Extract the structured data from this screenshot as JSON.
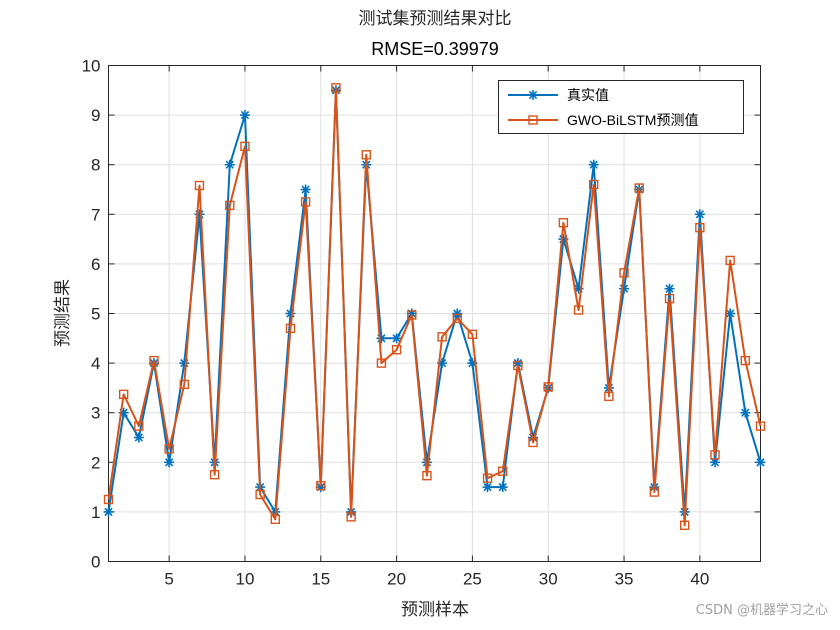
{
  "chart_data": {
    "type": "line",
    "title": "测试集预测结果对比",
    "subtitle": "RMSE=0.39979",
    "xlabel": "预测样本",
    "ylabel": "预测结果",
    "xlim": [
      1,
      44
    ],
    "ylim": [
      0,
      10
    ],
    "xticks": [
      5,
      10,
      15,
      20,
      25,
      30,
      35,
      40
    ],
    "yticks": [
      0,
      1,
      2,
      3,
      4,
      5,
      6,
      7,
      8,
      9,
      10
    ],
    "grid": true,
    "legend_position": "top-right",
    "x": [
      1,
      2,
      3,
      4,
      5,
      6,
      7,
      8,
      9,
      10,
      11,
      12,
      13,
      14,
      15,
      16,
      17,
      18,
      19,
      20,
      21,
      22,
      23,
      24,
      25,
      26,
      27,
      28,
      29,
      30,
      31,
      32,
      33,
      34,
      35,
      36,
      37,
      38,
      39,
      40,
      41,
      42,
      43,
      44
    ],
    "series": [
      {
        "name": "真实值",
        "color": "#0072BD",
        "marker": "asterisk",
        "values": [
          1,
          3,
          2.5,
          4,
          2,
          4,
          7,
          2,
          8,
          9,
          1.5,
          1,
          5,
          7.5,
          1.5,
          9.5,
          1,
          8,
          4.5,
          4.5,
          5,
          2,
          4,
          5,
          4,
          1.5,
          1.5,
          4,
          2.5,
          3.5,
          6.5,
          5.5,
          8,
          3.5,
          5.5,
          7.5,
          1.5,
          5.5,
          1,
          7,
          2,
          5,
          3,
          2
        ]
      },
      {
        "name": "GWO-BiLSTM预测值",
        "color": "#D95319",
        "marker": "square",
        "values": [
          1.25,
          3.37,
          2.73,
          4.05,
          2.27,
          3.57,
          7.58,
          1.75,
          7.18,
          8.37,
          1.35,
          0.85,
          4.7,
          7.25,
          1.53,
          9.55,
          0.9,
          8.2,
          4,
          4.27,
          4.97,
          1.73,
          4.53,
          4.9,
          4.58,
          1.68,
          1.82,
          3.95,
          2.4,
          3.52,
          6.83,
          5.07,
          7.6,
          3.33,
          5.82,
          7.53,
          1.4,
          5.3,
          0.73,
          6.73,
          2.15,
          6.07,
          4.05,
          2.73
        ]
      }
    ]
  },
  "watermark": "CSDN @机器学习之心"
}
